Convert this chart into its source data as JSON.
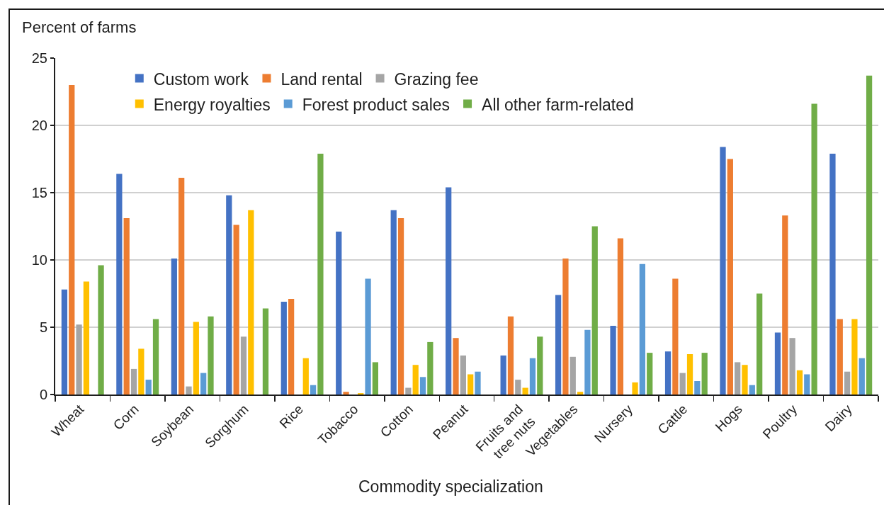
{
  "chart_data": {
    "type": "bar",
    "ylabel": "Percent of farms",
    "xlabel": "Commodity specialization",
    "categories": [
      "Wheat",
      "Corn",
      "Soybean",
      "Sorghum",
      "Rice",
      "Tobacco",
      "Cotton",
      "Peanut",
      "Fruits and tree nuts",
      "Vegetables",
      "Nursery",
      "Cattle",
      "Hogs",
      "Poultry",
      "Dairy"
    ],
    "series": [
      {
        "name": "Custom work",
        "color": "#4472c4",
        "values": [
          7.8,
          16.4,
          10.1,
          14.8,
          6.9,
          12.1,
          13.7,
          15.4,
          2.9,
          7.4,
          5.1,
          3.2,
          18.4,
          4.6,
          17.9
        ]
      },
      {
        "name": "Land rental",
        "color": "#ed7d31",
        "values": [
          23.0,
          13.1,
          16.1,
          12.6,
          7.1,
          0.2,
          13.1,
          4.2,
          5.8,
          10.1,
          11.6,
          8.6,
          17.5,
          13.3,
          5.6
        ]
      },
      {
        "name": "Grazing fee",
        "color": "#a5a5a5",
        "values": [
          5.2,
          1.9,
          0.6,
          4.3,
          null,
          null,
          0.5,
          2.9,
          1.1,
          2.8,
          null,
          1.6,
          2.4,
          4.2,
          1.7
        ]
      },
      {
        "name": "Energy royalties",
        "color": "#ffc000",
        "values": [
          8.4,
          3.4,
          5.4,
          13.7,
          2.7,
          0.1,
          2.2,
          1.5,
          0.5,
          0.2,
          0.9,
          3.0,
          2.2,
          1.8,
          5.6
        ]
      },
      {
        "name": "Forest product sales",
        "color": "#5b9bd5",
        "values": [
          null,
          1.1,
          1.6,
          null,
          0.7,
          8.6,
          1.3,
          1.7,
          2.7,
          4.8,
          9.7,
          1.0,
          0.7,
          1.5,
          2.7
        ]
      },
      {
        "name": "All other farm-related",
        "color": "#70ad47",
        "values": [
          9.6,
          5.6,
          5.8,
          6.4,
          17.9,
          2.4,
          3.9,
          null,
          4.3,
          12.5,
          3.1,
          3.1,
          7.5,
          21.6,
          23.7
        ]
      }
    ],
    "ylim": [
      0,
      25
    ],
    "yticks": [
      0,
      5,
      10,
      15,
      20,
      25
    ],
    "grid": "y",
    "legend": "top left"
  }
}
